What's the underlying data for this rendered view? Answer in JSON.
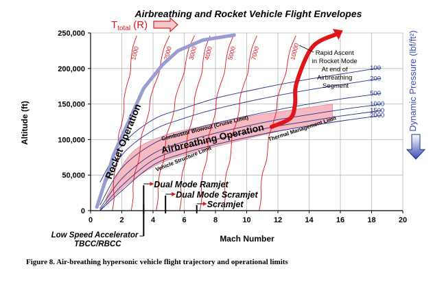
{
  "colors": {
    "grid": "#b8b8b8",
    "axis": "#000000",
    "temperature": "#e0141b",
    "dynamic_pressure": "#1f2f8f",
    "rocket": "#9a9cd0",
    "rapid_ascent": "#e0141b",
    "airbreathing_band": "#f6b9c2",
    "airbreathing_band_edge": "#e49aa6",
    "arrow_box": "#f5c7ca",
    "pressure_title": "#3b4cb8",
    "pressure_arrow_top": "#ffffff",
    "pressure_arrow_bottom": "#3a49b2"
  },
  "chart_data": {
    "type": "line",
    "title": "Airbreathing and Rocket Vehicle Flight Envelopes",
    "xlabel": "Mach Number",
    "ylabel": "Altitude (ft)",
    "xlim": [
      0,
      20
    ],
    "ylim": [
      0,
      250000
    ],
    "x_ticks": [
      0,
      2,
      4,
      6,
      8,
      10,
      12,
      14,
      16,
      18,
      20
    ],
    "y_ticks": [
      0,
      50000,
      100000,
      150000,
      200000,
      250000
    ],
    "x_tick_labels": [
      "0",
      "2",
      "4",
      "6",
      "8",
      "10",
      "12",
      "14",
      "16",
      "18",
      "20"
    ],
    "y_tick_labels": [
      "0",
      "50,000",
      "100,000",
      "150,000",
      "200,000",
      "250,000"
    ],
    "grid": true,
    "temperature_legend": {
      "label": "T",
      "subscript": "total",
      "unit": "(R)"
    },
    "temperature_contours": [
      {
        "label": "1000",
        "base_mach": 1.4,
        "top_mach": 2.9
      },
      {
        "label": "2000",
        "base_mach": 2.6,
        "top_mach": 5.0
      },
      {
        "label": "3000",
        "base_mach": 4.2,
        "top_mach": 6.6
      },
      {
        "label": "4000",
        "base_mach": 5.7,
        "top_mach": 7.6
      },
      {
        "label": "5000",
        "base_mach": 7.0,
        "top_mach": 9.1
      },
      {
        "label": "7000",
        "base_mach": 8.5,
        "top_mach": 10.6
      },
      {
        "label": "10000",
        "base_mach": 10.8,
        "top_mach": 13.1
      }
    ],
    "dynamic_pressure_title": "Dynamic Pressure (lbf/ft²)",
    "dynamic_pressure_lines": [
      {
        "label": "100",
        "x": [
          0.6,
          2,
          4,
          6,
          8,
          10,
          12,
          14,
          16,
          18,
          18.6
        ],
        "y": [
          40000,
          92000,
          128000,
          144000,
          158000,
          168000,
          177000,
          185000,
          192000,
          199000,
          201000
        ]
      },
      {
        "label": "200",
        "x": [
          0.6,
          2,
          4,
          6,
          8,
          10,
          12,
          14,
          16,
          18,
          18.6
        ],
        "y": [
          22000,
          78000,
          113000,
          130000,
          143000,
          153000,
          162000,
          170000,
          177000,
          184000,
          186000
        ]
      },
      {
        "label": "500",
        "x": [
          0.6,
          2,
          4,
          6,
          8,
          10,
          12,
          14,
          16,
          18,
          18.6
        ],
        "y": [
          8000,
          60000,
          94000,
          111000,
          123000,
          133000,
          142000,
          150000,
          157000,
          163000,
          165000
        ]
      },
      {
        "label": "1000",
        "x": [
          0.6,
          2,
          4,
          6,
          8,
          10,
          12,
          14,
          16,
          18,
          18.6
        ],
        "y": [
          3000,
          45000,
          80000,
          97000,
          109000,
          119000,
          128000,
          135000,
          142000,
          148000,
          150000
        ]
      },
      {
        "label": "1500",
        "x": [
          0.6,
          2,
          4,
          6,
          8,
          10,
          12,
          14,
          16,
          18,
          18.6
        ],
        "y": [
          1000,
          35000,
          71000,
          88000,
          100000,
          110000,
          119000,
          126000,
          133000,
          139000,
          141000
        ]
      },
      {
        "label": "2000",
        "x": [
          0.6,
          2,
          4,
          6,
          8,
          10,
          12,
          14,
          16,
          18,
          18.6
        ],
        "y": [
          0,
          28000,
          64000,
          81000,
          93000,
          103000,
          112000,
          119000,
          126000,
          132000,
          134000
        ]
      }
    ],
    "rocket_operation": {
      "label": "Rocket Operation",
      "x": [
        0.4,
        1.5,
        3.4,
        4.6,
        5.6,
        7.2,
        9.2
      ],
      "y": [
        5000,
        80000,
        172000,
        205000,
        225000,
        240000,
        247000
      ]
    },
    "airbreathing_corridor": {
      "label": "Airbreathing Operation",
      "upper": {
        "x": [
          1.0,
          2.5,
          4.5,
          7.0,
          10.0,
          13.0,
          15.5
        ],
        "y": [
          18000,
          78000,
          104000,
          118000,
          132000,
          142000,
          150000
        ]
      },
      "lower": {
        "x": [
          1.0,
          2.5,
          4.5,
          7.0,
          10.0,
          13.0,
          15.5
        ],
        "y": [
          10000,
          40000,
          67000,
          84000,
          101000,
          116000,
          126000
        ]
      }
    },
    "rapid_ascent": {
      "label": "Rapid Ascent in Rocket Mode At end of Airbreathing Segment",
      "x": [
        11.6,
        12.8,
        13.1,
        13.2,
        14.2,
        15.7
      ],
      "y": [
        118000,
        130000,
        150000,
        180000,
        230000,
        248000
      ]
    },
    "annotations": [
      "Combustor Blowout (Cruise Limit)",
      "Thermal Management Limit",
      "Vehicle Structure Limit",
      "Airbreathing Operation",
      "Rocket Operation"
    ],
    "propulsion_modes": [
      {
        "label": "Low Speed Accelerator",
        "label2": "TBCC/RBCC",
        "start_mach": 3.4
      },
      {
        "label": "Dual Mode Ramjet",
        "start_mach": 3.4
      },
      {
        "label": "Dual Mode Scramjet",
        "start_mach": 4.8
      },
      {
        "label": "Scramjet",
        "start_mach": 6.8
      }
    ]
  },
  "caption": "Figure 8. Air-breathing hypersonic vehicle flight trajectory and operational limits"
}
